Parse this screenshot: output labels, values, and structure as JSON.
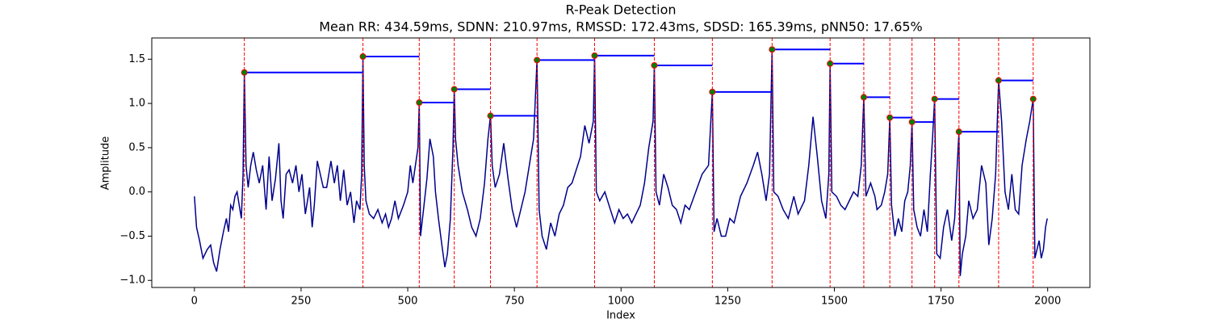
{
  "chart_data": {
    "type": "line",
    "title": "R-Peak Detection",
    "subtitle": "Mean RR: 434.59ms, SDNN: 210.97ms, RMSSD: 172.43ms, SDSD: 165.39ms, pNN50: 17.65%",
    "x_label": "Index",
    "y_label": "Amplitude",
    "xlim": [
      -99.95,
      2098.95
    ],
    "ylim": [
      -1.08,
      1.74
    ],
    "xticks": [
      0,
      250,
      500,
      750,
      1000,
      1250,
      1500,
      1750,
      2000
    ],
    "yticks": [
      {
        "value": -1,
        "label": "−1.0"
      },
      {
        "value": -0.5,
        "label": "−0.5"
      },
      {
        "value": 0,
        "label": "0.0"
      },
      {
        "value": 0.5,
        "label": "0.5"
      },
      {
        "value": 1,
        "label": "1.0"
      },
      {
        "value": 1.5,
        "label": "1.5"
      }
    ],
    "signal": {
      "color": "#00008b",
      "x": [
        0,
        5,
        12,
        20,
        30,
        38,
        45,
        52,
        60,
        68,
        75,
        80,
        85,
        90,
        95,
        100,
        105,
        110,
        114,
        117,
        121,
        126,
        132,
        138,
        145,
        152,
        160,
        168,
        175,
        182,
        190,
        198,
        203,
        208,
        215,
        222,
        230,
        238,
        245,
        252,
        260,
        270,
        276,
        281,
        288,
        295,
        302,
        310,
        320,
        328,
        335,
        342,
        350,
        358,
        366,
        374,
        380,
        388,
        392,
        395,
        398,
        402,
        410,
        420,
        430,
        440,
        448,
        455,
        462,
        470,
        478,
        490,
        500,
        506,
        512,
        518,
        524,
        527,
        530,
        537,
        545,
        552,
        560,
        565,
        572,
        580,
        587,
        593,
        600,
        606,
        609,
        612,
        618,
        628,
        640,
        650,
        660,
        670,
        680,
        688,
        694,
        698,
        705,
        715,
        725,
        735,
        745,
        755,
        765,
        775,
        785,
        795,
        803,
        808,
        815,
        825,
        835,
        845,
        855,
        865,
        875,
        885,
        895,
        905,
        915,
        925,
        935,
        938,
        942,
        950,
        962,
        975,
        985,
        995,
        1005,
        1015,
        1025,
        1035,
        1045,
        1055,
        1065,
        1075,
        1078,
        1082,
        1090,
        1100,
        1110,
        1120,
        1130,
        1140,
        1150,
        1160,
        1175,
        1190,
        1205,
        1214,
        1218,
        1225,
        1235,
        1245,
        1255,
        1265,
        1280,
        1295,
        1310,
        1320,
        1330,
        1340,
        1348,
        1354,
        1358,
        1368,
        1380,
        1392,
        1405,
        1415,
        1430,
        1440,
        1450,
        1460,
        1470,
        1480,
        1487,
        1490,
        1494,
        1505,
        1515,
        1525,
        1535,
        1545,
        1555,
        1563,
        1569,
        1574,
        1585,
        1595,
        1600,
        1610,
        1618,
        1625,
        1630,
        1634,
        1642,
        1650,
        1658,
        1665,
        1672,
        1678,
        1682,
        1686,
        1694,
        1702,
        1710,
        1718,
        1725,
        1730,
        1735,
        1740,
        1748,
        1756,
        1765,
        1775,
        1782,
        1788,
        1792,
        1795,
        1800,
        1808,
        1815,
        1825,
        1835,
        1845,
        1855,
        1862,
        1870,
        1878,
        1885,
        1892,
        1900,
        1908,
        1916,
        1924,
        1932,
        1940,
        1950,
        1958,
        1966,
        1970,
        1975,
        1980,
        1985,
        1990,
        1995,
        1999
      ],
      "values": [
        -0.05,
        -0.4,
        -0.55,
        -0.75,
        -0.65,
        -0.6,
        -0.8,
        -0.9,
        -0.65,
        -0.45,
        -0.3,
        -0.45,
        -0.15,
        -0.2,
        -0.05,
        0.0,
        -0.15,
        -0.3,
        0.2,
        1.35,
        0.3,
        0.05,
        0.3,
        0.45,
        0.25,
        0.1,
        0.3,
        -0.2,
        0.4,
        -0.1,
        0.15,
        0.55,
        -0.1,
        -0.3,
        0.2,
        0.25,
        0.1,
        0.3,
        0.0,
        0.2,
        -0.25,
        0.05,
        -0.4,
        -0.15,
        0.35,
        0.2,
        0.05,
        0.05,
        0.35,
        0.1,
        0.3,
        -0.1,
        0.25,
        -0.15,
        0.0,
        -0.35,
        -0.1,
        -0.2,
        0.2,
        1.53,
        0.3,
        -0.1,
        -0.25,
        -0.3,
        -0.2,
        -0.35,
        -0.25,
        -0.4,
        -0.3,
        -0.1,
        -0.3,
        -0.15,
        0.0,
        0.3,
        0.1,
        0.3,
        0.5,
        1.01,
        -0.5,
        -0.2,
        0.15,
        0.6,
        0.4,
        0.0,
        -0.3,
        -0.6,
        -0.85,
        -0.7,
        -0.3,
        0.5,
        1.16,
        0.6,
        0.3,
        0.0,
        -0.2,
        -0.4,
        -0.5,
        -0.3,
        0.1,
        0.6,
        0.86,
        0.3,
        0.05,
        0.2,
        0.55,
        0.15,
        -0.2,
        -0.4,
        -0.2,
        0.0,
        0.3,
        0.6,
        1.49,
        -0.2,
        -0.5,
        -0.65,
        -0.35,
        -0.5,
        -0.25,
        -0.15,
        0.05,
        0.1,
        0.25,
        0.4,
        0.75,
        0.55,
        0.8,
        1.54,
        0.0,
        -0.1,
        0.0,
        -0.2,
        -0.35,
        -0.2,
        -0.3,
        -0.25,
        -0.35,
        -0.25,
        -0.15,
        0.1,
        0.5,
        0.8,
        1.43,
        0.0,
        -0.15,
        0.2,
        0.05,
        -0.15,
        -0.2,
        -0.35,
        -0.15,
        -0.2,
        0.0,
        0.2,
        0.3,
        1.13,
        -0.45,
        -0.3,
        -0.5,
        -0.5,
        -0.3,
        -0.35,
        -0.05,
        0.1,
        0.3,
        0.45,
        0.2,
        -0.1,
        0.2,
        1.61,
        0.0,
        -0.05,
        -0.2,
        -0.3,
        -0.05,
        -0.25,
        -0.1,
        0.3,
        0.85,
        0.4,
        -0.1,
        -0.3,
        0.2,
        1.45,
        0.0,
        -0.05,
        -0.15,
        -0.2,
        -0.1,
        0.0,
        -0.05,
        0.3,
        1.07,
        -0.05,
        0.1,
        -0.05,
        -0.2,
        -0.15,
        0.0,
        0.2,
        0.84,
        -0.15,
        -0.5,
        -0.3,
        -0.45,
        -0.1,
        0.0,
        0.3,
        0.79,
        -0.2,
        -0.4,
        -0.5,
        -0.2,
        -0.45,
        0.2,
        0.6,
        1.05,
        -0.7,
        -0.75,
        -0.4,
        -0.2,
        -0.55,
        -0.3,
        0.3,
        0.68,
        -0.95,
        -0.7,
        -0.5,
        -0.1,
        -0.3,
        -0.2,
        0.3,
        0.1,
        -0.6,
        -0.3,
        0.2,
        1.26,
        0.8,
        0.0,
        -0.2,
        0.2,
        -0.2,
        -0.25,
        0.3,
        0.6,
        0.8,
        1.05,
        -0.75,
        -0.65,
        -0.55,
        -0.75,
        -0.65,
        -0.4,
        -0.3
      ]
    },
    "peaks": {
      "color": "#008000",
      "edge_color": "#ff0000",
      "line_color": "#ff0000",
      "rr_color": "#0000ff",
      "x": [
        117,
        395,
        527,
        609,
        694,
        803,
        938,
        1078,
        1214,
        1354,
        1490,
        1569,
        1630,
        1682,
        1735,
        1792,
        1885,
        1966
      ],
      "values": [
        1.35,
        1.53,
        1.01,
        1.16,
        0.86,
        1.49,
        1.54,
        1.43,
        1.13,
        1.61,
        1.45,
        1.07,
        0.84,
        0.79,
        1.05,
        0.68,
        1.26,
        1.05
      ]
    }
  }
}
